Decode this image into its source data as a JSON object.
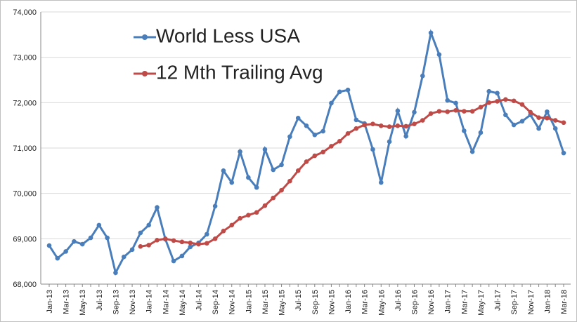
{
  "chart_data": {
    "type": "line",
    "categories": [
      "Jan-13",
      null,
      "Mar-13",
      null,
      "May-13",
      null,
      "Jul-13",
      null,
      "Sep-13",
      null,
      "Nov-13",
      null,
      "Jan-14",
      null,
      "Mar-14",
      null,
      "May-14",
      null,
      "Jul-14",
      null,
      "Sep-14",
      null,
      "Nov-14",
      null,
      "Jan-15",
      null,
      "Mar-15",
      null,
      "May-15",
      null,
      "Jul-15",
      null,
      "Sep-15",
      null,
      "Nov-15",
      null,
      "Jan-16",
      null,
      "Mar-16",
      null,
      "May-16",
      null,
      "Jul-16",
      null,
      "Sep-16",
      null,
      "Nov-16",
      null,
      "Jan-17",
      null,
      "Mar-17",
      null,
      "May-17",
      null,
      "Jul-17",
      null,
      "Sep-17",
      null,
      "Nov-17",
      null,
      "Jan-18",
      null,
      "Mar-18"
    ],
    "series": [
      {
        "name": "World Less USA",
        "color": "#4a7ebb",
        "values": [
          68850,
          68570,
          68720,
          68940,
          68880,
          69020,
          69300,
          69020,
          68250,
          68600,
          68760,
          69130,
          69300,
          69690,
          68990,
          68510,
          68620,
          68820,
          68910,
          69100,
          69720,
          70500,
          70240,
          70920,
          70350,
          70130,
          70970,
          70520,
          70630,
          71250,
          71660,
          71490,
          71290,
          71370,
          71990,
          72240,
          72280,
          71620,
          71540,
          70970,
          70240,
          71140,
          71820,
          71260,
          71790,
          72590,
          73540,
          73060,
          72050,
          71990,
          71380,
          70920,
          71340,
          72250,
          72210,
          71730,
          71510,
          71590,
          71730,
          71430,
          71800,
          71430,
          70890
        ]
      },
      {
        "name": "12 Mth Trailing Avg",
        "color": "#be4b48",
        "values": [
          null,
          null,
          null,
          null,
          null,
          null,
          null,
          null,
          null,
          null,
          null,
          68830,
          68860,
          68970,
          69000,
          68960,
          68930,
          68910,
          68880,
          68900,
          69000,
          69170,
          69300,
          69450,
          69520,
          69580,
          69730,
          69900,
          70070,
          70270,
          70500,
          70700,
          70830,
          70910,
          71040,
          71150,
          71320,
          71430,
          71510,
          71530,
          71490,
          71470,
          71490,
          71480,
          71530,
          71610,
          71760,
          71810,
          71800,
          71830,
          71810,
          71810,
          71900,
          72000,
          72030,
          72070,
          72040,
          71960,
          71790,
          71670,
          71660,
          71610,
          71560
        ]
      }
    ],
    "ylim": [
      68000,
      74000
    ],
    "yticks": [
      {
        "value": 68000,
        "label": "68,000"
      },
      {
        "value": 69000,
        "label": "69,000"
      },
      {
        "value": 70000,
        "label": "70,000"
      },
      {
        "value": 71000,
        "label": "71,000"
      },
      {
        "value": 72000,
        "label": "72,000"
      },
      {
        "value": 73000,
        "label": "73,000"
      },
      {
        "value": 74000,
        "label": "74,000"
      }
    ],
    "grid": true
  }
}
